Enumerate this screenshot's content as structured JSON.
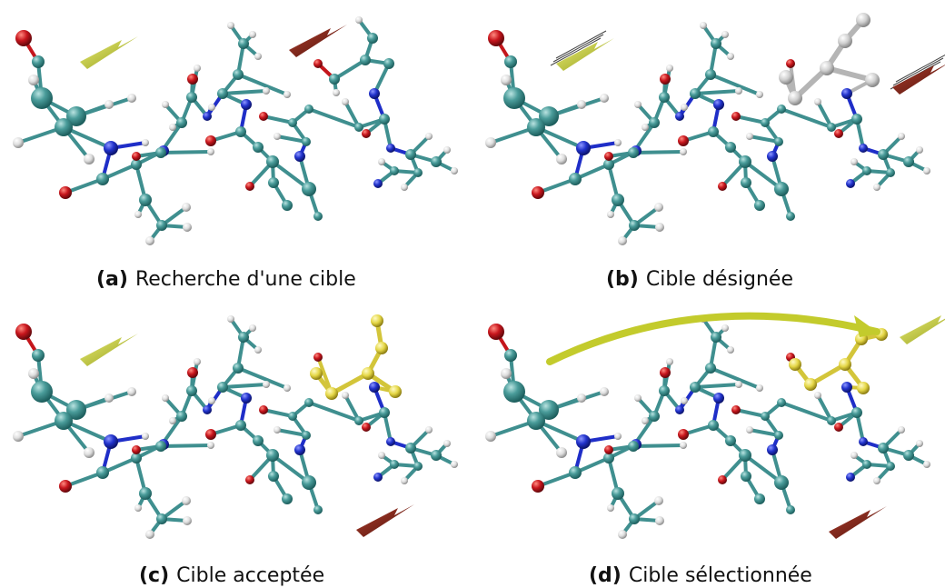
{
  "colors": {
    "carbon": "#3f8f8f",
    "carbon_light": "#7fc0bf",
    "nitrogen": "#1f2ec8",
    "oxygen": "#c4161c",
    "hydrogen": "#e2e2e2",
    "hydrogen_edge": "#a9a9a9",
    "highlight_gray": "#d0d0d0",
    "highlight_yellow": "#e0d443",
    "pointer_yellow": "#c4cc2a",
    "pointer_red": "#7a1f16",
    "arrow": "#c3cb2c",
    "caption": "#111111"
  },
  "panels": [
    {
      "id": "a",
      "letter": "(a)",
      "caption": "Recherche d'une cible",
      "highlight": "none"
    },
    {
      "id": "b",
      "letter": "(b)",
      "caption": "Cible désignée",
      "highlight": "gray"
    },
    {
      "id": "c",
      "letter": "(c)",
      "caption": "Cible acceptée",
      "highlight": "yellow"
    },
    {
      "id": "d",
      "letter": "(d)",
      "caption": "Cible sélectionnée",
      "highlight": "selected"
    }
  ]
}
